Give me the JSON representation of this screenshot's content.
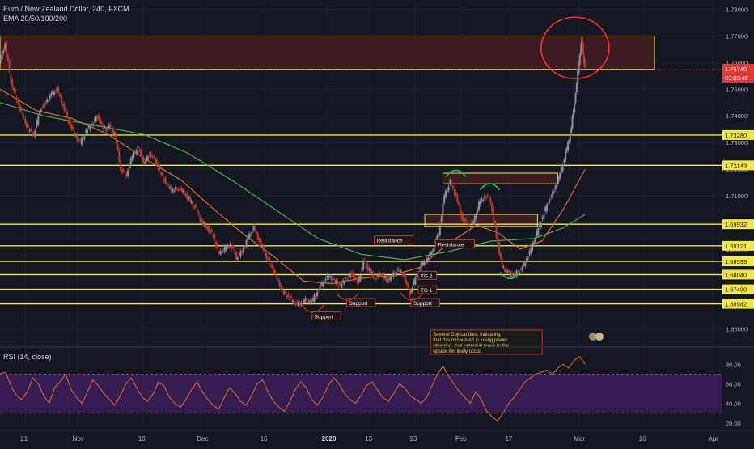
{
  "header": {
    "symbol": "Euro / New Zealand Dollar, 240, FXCM",
    "indicator": "EMA 20/50/100/200"
  },
  "rsi_panel": {
    "label": "RSI (14, close)"
  },
  "countdown": "03:00:45",
  "colors": {
    "background": "#131722",
    "up_candle": "#8a8f99",
    "down_candle": "#c0392b",
    "level_line": "#f5e642",
    "zone_fill": "#3b1c22",
    "ema_fast": "#e36b2c",
    "ema_slow": "#4caf50",
    "rsi_line": "#e36b2c",
    "rsi_band": "#3c1f5a",
    "circle": "#ff2d2d"
  },
  "chart_data": [
    {
      "type": "candlestick",
      "title": "Euro / New Zealand Dollar, 240, FXCM",
      "x_ticks": [
        "21",
        "Nov",
        "18",
        "Dec",
        "16",
        "2020",
        "13",
        "Jan 23",
        "Feb",
        "17",
        "Mar",
        "16",
        "Apr"
      ],
      "x_tick_labels": [
        "21",
        "Nov",
        "18",
        "Dec",
        "16",
        "2020",
        "13",
        "23",
        "Feb",
        "17",
        "Mar",
        "16",
        "Apr"
      ],
      "y_ticks": [
        1.78,
        1.77,
        1.76,
        1.75,
        1.74,
        1.73,
        1.72,
        1.71,
        1.7,
        1.69,
        1.68,
        1.67,
        1.66
      ],
      "y_tick_labels": [
        "1.78000",
        "1.77000",
        "1.76000",
        "1.75000",
        "1.74000",
        "1.73000",
        "1.72000",
        "1.71000",
        "1.70000",
        "1.69000",
        "1.68000",
        "1.67000",
        "1.66000"
      ],
      "ylim": [
        1.6535,
        1.7835
      ],
      "current_price": 1.7574,
      "current_price_label": "1.75740",
      "levels": [
        {
          "price": 1.7328,
          "label": "1.73280"
        },
        {
          "price": 1.72143,
          "label": "1.72143"
        },
        {
          "price": 1.69932,
          "label": "1.69932"
        },
        {
          "price": 1.69121,
          "label": "1.69121"
        },
        {
          "price": 1.68539,
          "label": "1.68539"
        },
        {
          "price": 1.6804,
          "label": "1.68040"
        },
        {
          "price": 1.6749,
          "label": "1.67490"
        },
        {
          "price": 1.66942,
          "label": "1.66942"
        }
      ],
      "zones": [
        {
          "from": 1.7575,
          "to": 1.77,
          "start": 0.0,
          "end": 0.906
        },
        {
          "from": 1.7145,
          "to": 1.7185,
          "start": 0.613,
          "end": 0.772
        },
        {
          "from": 1.6985,
          "to": 1.703,
          "start": 0.588,
          "end": 0.744
        }
      ],
      "series": [
        {
          "name": "EURNZD",
          "points": [
            [
              0.0,
              1.76
            ],
            [
              0.008,
              1.767
            ],
            [
              0.016,
              1.753
            ],
            [
              0.024,
              1.746
            ],
            [
              0.032,
              1.74
            ],
            [
              0.04,
              1.735
            ],
            [
              0.048,
              1.733
            ],
            [
              0.056,
              1.742
            ],
            [
              0.064,
              1.745
            ],
            [
              0.072,
              1.748
            ],
            [
              0.08,
              1.75
            ],
            [
              0.088,
              1.744
            ],
            [
              0.096,
              1.738
            ],
            [
              0.104,
              1.733
            ],
            [
              0.112,
              1.73
            ],
            [
              0.12,
              1.734
            ],
            [
              0.128,
              1.737
            ],
            [
              0.136,
              1.74
            ],
            [
              0.144,
              1.735
            ],
            [
              0.152,
              1.736
            ],
            [
              0.16,
              1.733
            ],
            [
              0.168,
              1.72
            ],
            [
              0.176,
              1.718
            ],
            [
              0.184,
              1.725
            ],
            [
              0.192,
              1.728
            ],
            [
              0.2,
              1.722
            ],
            [
              0.208,
              1.726
            ],
            [
              0.216,
              1.723
            ],
            [
              0.224,
              1.718
            ],
            [
              0.232,
              1.714
            ],
            [
              0.24,
              1.712
            ],
            [
              0.248,
              1.713
            ],
            [
              0.256,
              1.711
            ],
            [
              0.264,
              1.708
            ],
            [
              0.272,
              1.705
            ],
            [
              0.28,
              1.7
            ],
            [
              0.288,
              1.698
            ],
            [
              0.296,
              1.695
            ],
            [
              0.304,
              1.688
            ],
            [
              0.312,
              1.69
            ],
            [
              0.32,
              1.692
            ],
            [
              0.328,
              1.687
            ],
            [
              0.336,
              1.689
            ],
            [
              0.344,
              1.694
            ],
            [
              0.352,
              1.698
            ],
            [
              0.36,
              1.693
            ],
            [
              0.368,
              1.688
            ],
            [
              0.376,
              1.684
            ],
            [
              0.384,
              1.679
            ],
            [
              0.392,
              1.674
            ],
            [
              0.4,
              1.672
            ],
            [
              0.408,
              1.67
            ],
            [
              0.416,
              1.669
            ],
            [
              0.424,
              1.671
            ],
            [
              0.432,
              1.67
            ],
            [
              0.44,
              1.674
            ],
            [
              0.448,
              1.678
            ],
            [
              0.456,
              1.68
            ],
            [
              0.464,
              1.678
            ],
            [
              0.472,
              1.676
            ],
            [
              0.48,
              1.679
            ],
            [
              0.488,
              1.681
            ],
            [
              0.496,
              1.677
            ],
            [
              0.504,
              1.685
            ],
            [
              0.512,
              1.682
            ],
            [
              0.52,
              1.679
            ],
            [
              0.528,
              1.681
            ],
            [
              0.536,
              1.678
            ],
            [
              0.544,
              1.68
            ],
            [
              0.552,
              1.682
            ],
            [
              0.56,
              1.68
            ],
            [
              0.568,
              1.673
            ],
            [
              0.576,
              1.679
            ],
            [
              0.584,
              1.684
            ],
            [
              0.592,
              1.686
            ],
            [
              0.6,
              1.69
            ],
            [
              0.608,
              1.696
            ],
            [
              0.616,
              1.71
            ],
            [
              0.624,
              1.715
            ],
            [
              0.632,
              1.71
            ],
            [
              0.64,
              1.702
            ],
            [
              0.648,
              1.699
            ],
            [
              0.656,
              1.7
            ],
            [
              0.664,
              1.707
            ],
            [
              0.672,
              1.71
            ],
            [
              0.68,
              1.708
            ],
            [
              0.688,
              1.695
            ],
            [
              0.696,
              1.683
            ],
            [
              0.704,
              1.681
            ],
            [
              0.712,
              1.68
            ],
            [
              0.72,
              1.682
            ],
            [
              0.728,
              1.685
            ],
            [
              0.736,
              1.69
            ],
            [
              0.744,
              1.696
            ],
            [
              0.752,
              1.702
            ],
            [
              0.76,
              1.708
            ],
            [
              0.768,
              1.712
            ],
            [
              0.776,
              1.718
            ],
            [
              0.784,
              1.726
            ],
            [
              0.79,
              1.733
            ],
            [
              0.796,
              1.745
            ],
            [
              0.802,
              1.76
            ],
            [
              0.806,
              1.769
            ],
            [
              0.81,
              1.7574
            ]
          ]
        },
        {
          "name": "EMA fast",
          "points": [
            [
              0.0,
              1.75
            ],
            [
              0.05,
              1.742
            ],
            [
              0.1,
              1.739
            ],
            [
              0.15,
              1.733
            ],
            [
              0.2,
              1.724
            ],
            [
              0.25,
              1.716
            ],
            [
              0.3,
              1.704
            ],
            [
              0.34,
              1.695
            ],
            [
              0.38,
              1.687
            ],
            [
              0.42,
              1.678
            ],
            [
              0.46,
              1.677
            ],
            [
              0.5,
              1.679
            ],
            [
              0.54,
              1.68
            ],
            [
              0.58,
              1.683
            ],
            [
              0.62,
              1.692
            ],
            [
              0.66,
              1.699
            ],
            [
              0.69,
              1.696
            ],
            [
              0.72,
              1.69
            ],
            [
              0.75,
              1.693
            ],
            [
              0.78,
              1.705
            ],
            [
              0.81,
              1.72
            ]
          ]
        },
        {
          "name": "EMA slow",
          "points": [
            [
              0.0,
              1.745
            ],
            [
              0.06,
              1.74
            ],
            [
              0.14,
              1.736
            ],
            [
              0.2,
              1.733
            ],
            [
              0.26,
              1.726
            ],
            [
              0.32,
              1.716
            ],
            [
              0.38,
              1.705
            ],
            [
              0.44,
              1.694
            ],
            [
              0.5,
              1.688
            ],
            [
              0.56,
              1.686
            ],
            [
              0.62,
              1.689
            ],
            [
              0.68,
              1.693
            ],
            [
              0.74,
              1.694
            ],
            [
              0.78,
              1.698
            ],
            [
              0.81,
              1.703
            ]
          ]
        }
      ],
      "annotations": [
        {
          "text": "Support",
          "x": 0.433,
          "price": 1.664
        },
        {
          "text": "Support",
          "x": 0.481,
          "price": 1.669
        },
        {
          "text": "Support",
          "x": 0.57,
          "price": 1.669
        },
        {
          "text": "Resistance",
          "x": 0.519,
          "price": 1.6925
        },
        {
          "text": "Resistance",
          "x": 0.604,
          "price": 1.691
        },
        {
          "text": "TG 2",
          "x": 0.58,
          "price": 1.6792
        },
        {
          "text": "TG 1",
          "x": 0.58,
          "price": 1.6738
        },
        {
          "text": "Several Doji candles, indicating that this movement is losing power. Meaning, that potential move to the upside will likely occur.",
          "x": 0.596,
          "price": 1.6596
        }
      ]
    },
    {
      "type": "line",
      "title": "RSI (14, close)",
      "y_ticks": [
        80,
        60,
        40,
        20
      ],
      "y_tick_labels": [
        "80.00",
        "60.00",
        "40.00",
        "20.00"
      ],
      "ylim": [
        14,
        96
      ],
      "band": [
        30,
        70
      ],
      "series": [
        {
          "name": "RSI",
          "values": [
            70,
            72,
            58,
            48,
            44,
            52,
            66,
            60,
            48,
            40,
            56,
            62,
            70,
            54,
            46,
            40,
            52,
            64,
            58,
            50,
            44,
            38,
            48,
            60,
            66,
            56,
            46,
            42,
            50,
            62,
            58,
            46,
            40,
            36,
            44,
            54,
            62,
            52,
            44,
            38,
            34,
            46,
            56,
            50,
            42,
            38,
            48,
            60,
            64,
            52,
            42,
            36,
            32,
            42,
            54,
            62,
            56,
            44,
            38,
            46,
            58,
            66,
            60,
            50,
            44,
            40,
            48,
            58,
            62,
            54,
            46,
            42,
            50,
            60,
            56,
            48,
            44,
            40,
            46,
            58,
            70,
            78,
            68,
            60,
            52,
            46,
            40,
            52,
            44,
            32,
            26,
            22,
            30,
            40,
            46,
            54,
            62,
            66,
            70,
            72,
            74,
            70,
            76,
            80,
            76,
            84,
            88,
            80
          ]
        }
      ]
    }
  ]
}
